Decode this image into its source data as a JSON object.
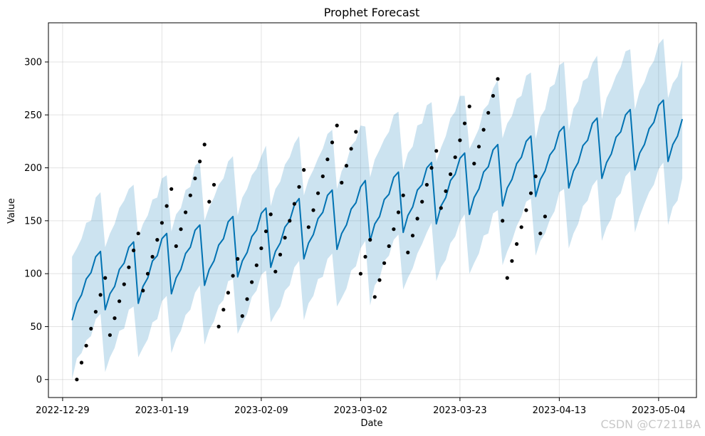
{
  "watermark": "CSDN @C7211BA",
  "chart_data": {
    "type": "line",
    "title": "Prophet Forecast",
    "xlabel": "Date",
    "ylabel": "Value",
    "x_type": "date",
    "x_range": [
      "2022-12-27",
      "2023-05-12"
    ],
    "xlim": [
      "2022-12-26",
      "2023-05-12"
    ],
    "ylim": [
      -17,
      337
    ],
    "grid": true,
    "colors": {
      "forecast": "#0072B2",
      "interval": "#0072B2",
      "observed": "#000000"
    },
    "x_ticks": [
      "2022-12-29",
      "2023-01-19",
      "2023-02-09",
      "2023-03-02",
      "2023-03-23",
      "2023-04-13",
      "2023-05-04"
    ],
    "y_ticks": [
      0,
      50,
      100,
      150,
      200,
      250,
      300
    ],
    "series": [
      {
        "type": "scatter",
        "x": [
          "2023-01-01",
          "2023-01-02",
          "2023-01-03",
          "2023-01-04",
          "2023-01-05",
          "2023-01-06",
          "2023-01-07",
          "2023-01-08",
          "2023-01-09",
          "2023-01-10",
          "2023-01-11",
          "2023-01-12",
          "2023-01-13",
          "2023-01-14",
          "2023-01-15",
          "2023-01-16",
          "2023-01-17",
          "2023-01-18",
          "2023-01-19",
          "2023-01-20",
          "2023-01-21",
          "2023-01-22",
          "2023-01-23",
          "2023-01-24",
          "2023-01-25",
          "2023-01-26",
          "2023-01-27",
          "2023-01-28",
          "2023-01-29",
          "2023-01-30",
          "2023-01-31",
          "2023-02-01",
          "2023-02-02",
          "2023-02-03",
          "2023-02-04",
          "2023-02-05",
          "2023-02-06",
          "2023-02-07",
          "2023-02-08",
          "2023-02-09",
          "2023-02-10",
          "2023-02-11",
          "2023-02-12",
          "2023-02-13",
          "2023-02-14",
          "2023-02-15",
          "2023-02-16",
          "2023-02-17",
          "2023-02-18",
          "2023-02-19",
          "2023-02-20",
          "2023-02-21",
          "2023-02-22",
          "2023-02-23",
          "2023-02-24",
          "2023-02-25",
          "2023-02-26",
          "2023-02-27",
          "2023-02-28",
          "2023-03-01",
          "2023-03-02",
          "2023-03-03",
          "2023-03-04",
          "2023-03-05",
          "2023-03-06",
          "2023-03-07",
          "2023-03-08",
          "2023-03-09",
          "2023-03-10",
          "2023-03-11",
          "2023-03-12",
          "2023-03-13",
          "2023-03-14",
          "2023-03-15",
          "2023-03-16",
          "2023-03-17",
          "2023-03-18",
          "2023-03-19",
          "2023-03-20",
          "2023-03-21",
          "2023-03-22",
          "2023-03-23",
          "2023-03-24",
          "2023-03-25",
          "2023-03-26",
          "2023-03-27",
          "2023-03-28",
          "2023-03-29",
          "2023-03-30",
          "2023-03-31",
          "2023-04-01",
          "2023-04-02",
          "2023-04-03",
          "2023-04-04",
          "2023-04-05",
          "2023-04-06",
          "2023-04-07",
          "2023-04-08",
          "2023-04-09",
          "2023-04-10",
          "2023-04-11"
        ],
        "y": [
          0,
          16,
          32,
          48,
          64,
          80,
          96,
          42,
          58,
          74,
          90,
          106,
          122,
          138,
          84,
          100,
          116,
          132,
          148,
          164,
          180,
          126,
          142,
          158,
          174,
          190,
          206,
          222,
          168,
          184,
          50,
          66,
          82,
          98,
          114,
          60,
          76,
          92,
          108,
          124,
          140,
          156,
          102,
          118,
          134,
          150,
          166,
          182,
          198,
          144,
          160,
          176,
          192,
          208,
          224,
          240,
          186,
          202,
          218,
          234,
          100,
          116,
          132,
          78,
          94,
          110,
          126,
          142,
          158,
          174,
          120,
          136,
          152,
          168,
          184,
          200,
          216,
          162,
          178,
          194,
          210,
          226,
          242,
          258,
          204,
          220,
          236,
          252,
          268,
          284,
          150,
          96,
          112,
          128,
          144,
          160,
          176,
          192,
          138,
          154,
          null
        ]
      },
      {
        "type": "line",
        "dates_start": "2022-12-31",
        "yhat": [
          56,
          72,
          80,
          95,
          101,
          116,
          121,
          66,
          81,
          88,
          104,
          110,
          125,
          130,
          72,
          88,
          96,
          112,
          117,
          133,
          138,
          81,
          96,
          104,
          119,
          125,
          141,
          146,
          89,
          104,
          112,
          127,
          133,
          149,
          154,
          97,
          112,
          120,
          135,
          141,
          157,
          162,
          106,
          121,
          129,
          144,
          150,
          165,
          171,
          114,
          129,
          137,
          152,
          158,
          174,
          179,
          123,
          138,
          146,
          161,
          167,
          182,
          188,
          131,
          147,
          154,
          170,
          175,
          191,
          196,
          139,
          155,
          163,
          179,
          184,
          200,
          205,
          147,
          164,
          172,
          188,
          194,
          209,
          214,
          156,
          172,
          180,
          196,
          201,
          217,
          222,
          164,
          181,
          189,
          204,
          210,
          225,
          230,
          173,
          189,
          197,
          212,
          218,
          234,
          239,
          181,
          197,
          205,
          221,
          226,
          242,
          247,
          190,
          205,
          213,
          229,
          234,
          250,
          255,
          198,
          214,
          222,
          237,
          243,
          259,
          264,
          206,
          222,
          230,
          246
        ],
        "upper": [
          116,
          124,
          133,
          148,
          150,
          172,
          177,
          125,
          138,
          147,
          162,
          169,
          180,
          184,
          134,
          147,
          155,
          170,
          172,
          190,
          193,
          140,
          156,
          162,
          179,
          182,
          202,
          206,
          150,
          163,
          172,
          184,
          190,
          206,
          211,
          155,
          172,
          180,
          193,
          199,
          211,
          221,
          164,
          180,
          187,
          203,
          210,
          223,
          230,
          174,
          189,
          198,
          209,
          218,
          232,
          236,
          180,
          197,
          205,
          221,
          226,
          240,
          239,
          191,
          208,
          217,
          227,
          234,
          250,
          253,
          198,
          214,
          220,
          240,
          242,
          259,
          262,
          206,
          219,
          230,
          247,
          253,
          268,
          268,
          218,
          227,
          237,
          255,
          260,
          275,
          283,
          228,
          242,
          249,
          265,
          268,
          287,
          290,
          227,
          248,
          255,
          276,
          279,
          297,
          300,
          235,
          256,
          263,
          282,
          285,
          299,
          306,
          246,
          266,
          275,
          287,
          295,
          310,
          312,
          255,
          273,
          281,
          294,
          301,
          317,
          322,
          266,
          280,
          286,
          302
        ],
        "lower": [
          0,
          20,
          25,
          37,
          41,
          57,
          62,
          7,
          21,
          30,
          46,
          48,
          66,
          69,
          21,
          30,
          38,
          54,
          57,
          74,
          79,
          25,
          38,
          46,
          61,
          66,
          82,
          89,
          33,
          47,
          55,
          70,
          75,
          93,
          95,
          43,
          53,
          62,
          78,
          84,
          99,
          103,
          54,
          62,
          69,
          84,
          89,
          106,
          112,
          56,
          72,
          79,
          95,
          97,
          114,
          119,
          69,
          77,
          86,
          103,
          107,
          124,
          131,
          70,
          89,
          96,
          112,
          117,
          132,
          137,
          85,
          96,
          105,
          119,
          128,
          139,
          148,
          93,
          106,
          113,
          129,
          135,
          149,
          156,
          100,
          110,
          119,
          136,
          138,
          157,
          160,
          108,
          121,
          131,
          145,
          154,
          168,
          171,
          117,
          131,
          138,
          151,
          159,
          177,
          180,
          124,
          138,
          147,
          164,
          169,
          183,
          189,
          131,
          144,
          152,
          171,
          176,
          192,
          197,
          139,
          154,
          166,
          177,
          184,
          199,
          205,
          146,
          163,
          169,
          190
        ]
      }
    ]
  }
}
